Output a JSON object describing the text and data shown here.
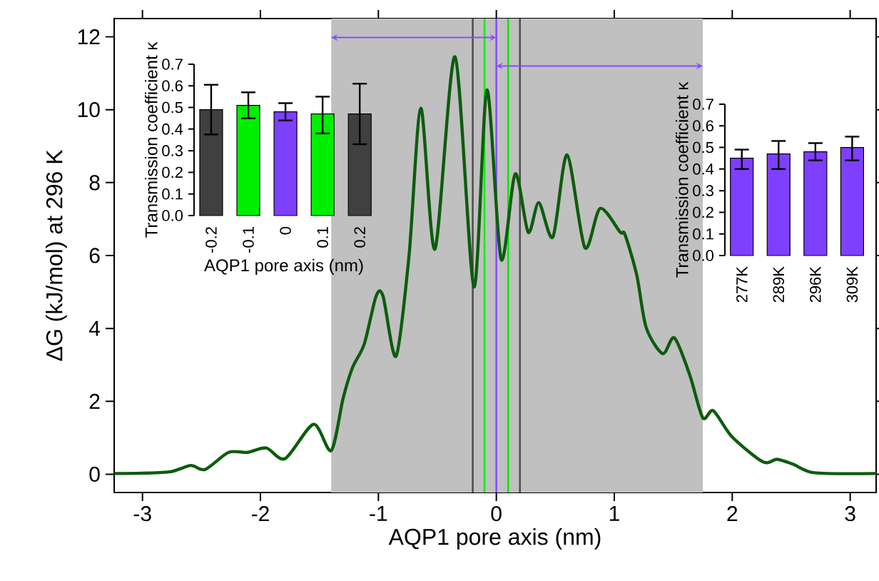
{
  "chart_data": [
    {
      "type": "line",
      "xlabel": "AQP1 pore axis (nm)",
      "ylabel": "ΔG (kJ/mol) at 296 K",
      "xlim": [
        -3.24,
        3.22
      ],
      "ylim": [
        -0.5,
        12.5
      ],
      "xticks": [
        -3,
        -2,
        -1,
        0,
        1,
        2,
        3
      ],
      "yticks": [
        0,
        2,
        4,
        6,
        8,
        10,
        12
      ],
      "series": [
        {
          "color": "#0d5c0d",
          "x": [
            -3.24,
            -3.0,
            -2.76,
            -2.59,
            -2.47,
            -2.27,
            -2.11,
            -1.95,
            -1.79,
            -1.55,
            -1.4,
            -1.3,
            -1.22,
            -1.12,
            -1.02,
            -0.96,
            -0.85,
            -0.74,
            -0.64,
            -0.52,
            -0.35,
            -0.19,
            -0.08,
            0.04,
            0.16,
            0.27,
            0.36,
            0.48,
            0.6,
            0.75,
            0.88,
            1.05,
            1.09,
            1.19,
            1.27,
            1.41,
            1.51,
            1.64,
            1.75,
            1.84,
            2.0,
            2.26,
            2.38,
            2.52,
            2.7,
            3.22
          ],
          "values": [
            0.02,
            0.03,
            0.07,
            0.24,
            0.13,
            0.6,
            0.6,
            0.72,
            0.43,
            1.37,
            0.65,
            2.07,
            2.92,
            3.57,
            4.88,
            4.88,
            3.24,
            6.0,
            10.04,
            6.18,
            11.45,
            5.14,
            10.54,
            5.9,
            8.24,
            6.64,
            7.45,
            6.51,
            8.76,
            6.22,
            7.29,
            6.64,
            6.58,
            5.47,
            4.03,
            3.31,
            3.74,
            2.72,
            1.55,
            1.74,
            1.02,
            0.34,
            0.41,
            0.27,
            0.04,
            0.02
          ]
        }
      ],
      "bands": [
        {
          "axis": "x",
          "from": -1.4,
          "to": 1.75,
          "color": "#c0c0c0"
        }
      ],
      "ref_lines": [
        {
          "axis": "x",
          "value": -0.2,
          "color": "#505050"
        },
        {
          "axis": "x",
          "value": -0.1,
          "color": "#00ee00"
        },
        {
          "axis": "x",
          "value": 0,
          "color": "#8a4dff"
        },
        {
          "axis": "x",
          "value": 0.1,
          "color": "#00ee00"
        },
        {
          "axis": "x",
          "value": 0.2,
          "color": "#505050"
        }
      ]
    },
    {
      "type": "bar",
      "xlabel": "AQP1 pore axis (nm)",
      "ylabel": "Transmission coefficient κ",
      "categories": [
        "-0.2",
        "-0.1",
        "0",
        "0.1",
        "0.2"
      ],
      "values": [
        0.49,
        0.51,
        0.48,
        0.47,
        0.47
      ],
      "colors": [
        "#404040",
        "#00ee00",
        "#7f3fff",
        "#00ee00",
        "#404040"
      ],
      "errors": [
        [
          0.375,
          0.605
        ],
        [
          0.45,
          0.57
        ],
        [
          0.44,
          0.52
        ],
        [
          0.38,
          0.55
        ],
        [
          0.33,
          0.61
        ]
      ],
      "ylim": [
        0,
        0.7
      ],
      "yticks": [
        {
          "value": 0,
          "label": "0.0"
        },
        0.1,
        0.2,
        0.3,
        0.4,
        0.5,
        0.6,
        0.7
      ]
    },
    {
      "type": "bar",
      "ylabel": "Transmission coefficient κ",
      "categories": [
        "277K",
        "289K",
        "296K",
        "309K"
      ],
      "values": [
        0.45,
        0.47,
        0.48,
        0.5
      ],
      "colors": [
        "#7f3fff",
        "#7f3fff",
        "#7f3fff",
        "#7f3fff"
      ],
      "errors": [
        [
          0.4,
          0.49
        ],
        [
          0.4,
          0.53
        ],
        [
          0.44,
          0.52
        ],
        [
          0.44,
          0.55
        ]
      ],
      "ylim": [
        0,
        0.7
      ],
      "yticks": [
        {
          "value": 0,
          "label": "0.0"
        },
        0.1,
        0.2,
        0.3,
        0.4,
        0.5,
        0.6,
        0.7
      ]
    }
  ]
}
